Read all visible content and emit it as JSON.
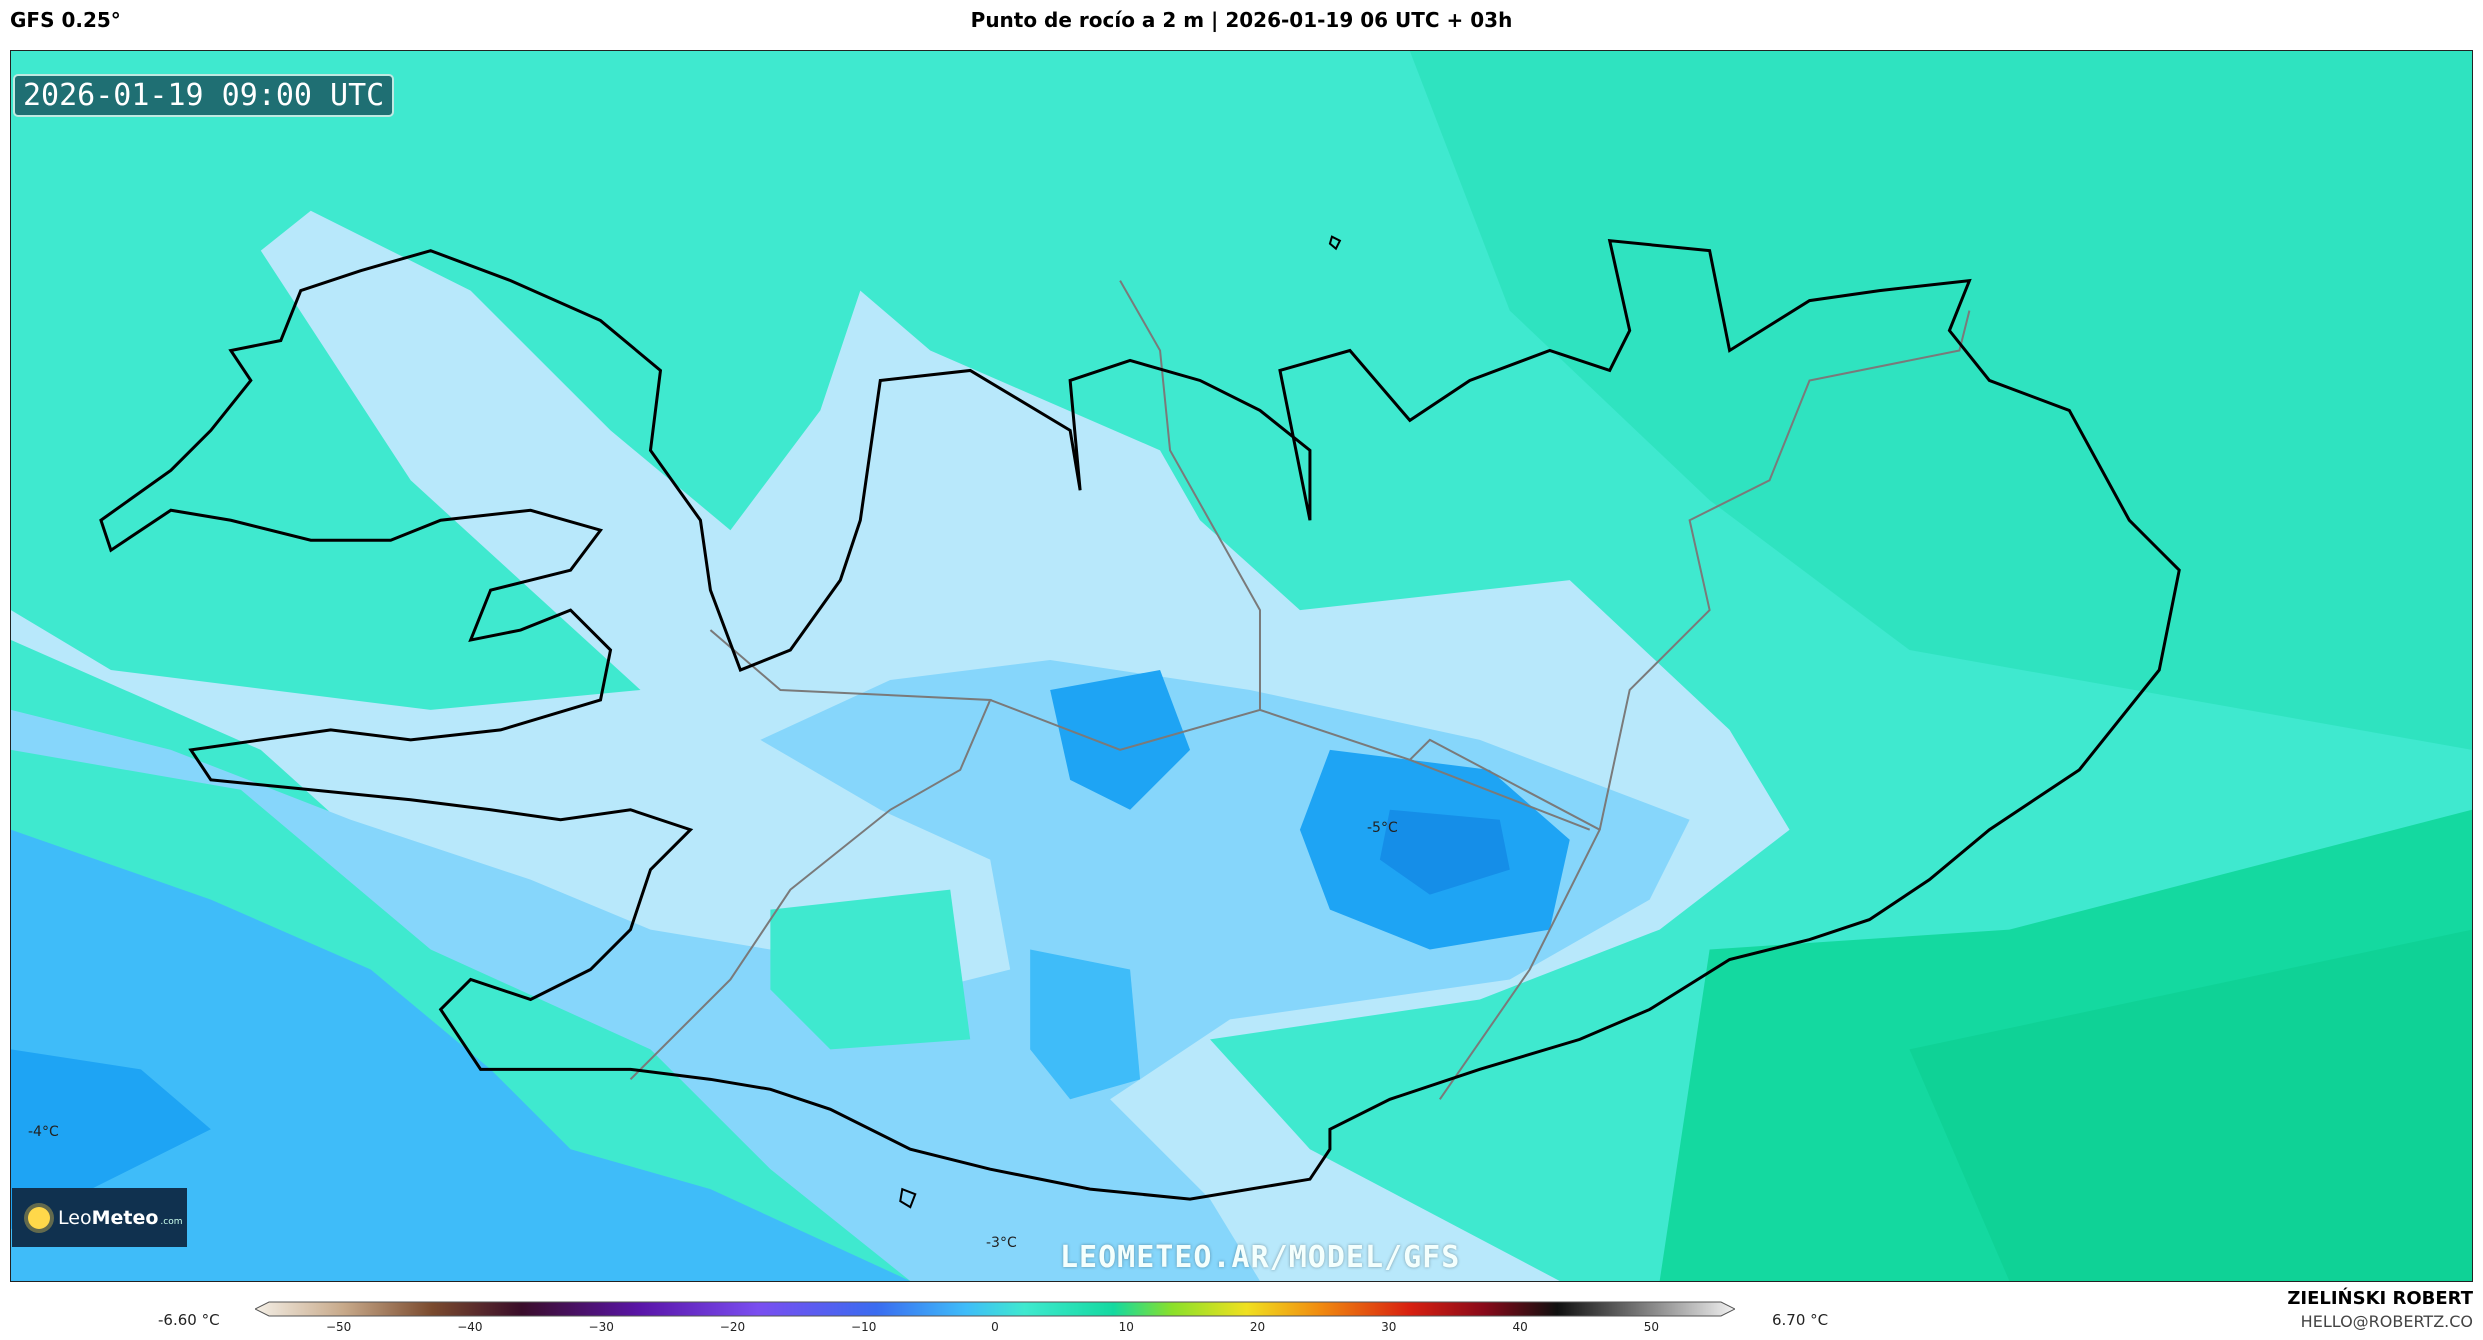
{
  "header": {
    "model": "GFS 0.25°",
    "title": "Punto de rocío a 2 m | 2026-01-19 06 UTC + 03h"
  },
  "map": {
    "valid_time": "2026-01-19 09:00 UTC",
    "contour_labels": [
      "-5°C",
      "-4°C",
      "-3°C"
    ],
    "colors": {
      "ocean_far": "#3fe9cf",
      "ocean_warm": "#14d9a0",
      "level_1": "#b8e8fb",
      "level_2": "#86d6fb",
      "level_3": "#3fbcf9",
      "level_4": "#1ea4f4",
      "coastline": "#000000",
      "region_border": "#7a7a7a"
    }
  },
  "branding": {
    "logo_name": "Leo",
    "logo_name_bold": "Meteo",
    "logo_suffix": ".com",
    "site_url": "LEOMETEO.AR/MODEL/GFS",
    "author": "ZIELIŃSKI ROBERT",
    "email": "HELLO@ROBERTZ.CO"
  },
  "colorbar": {
    "min_label": "-6.60 °C",
    "max_label": "6.70 °C",
    "ticks": [
      "−50",
      "−40",
      "−30",
      "−20",
      "−10",
      "0",
      "10",
      "20",
      "30",
      "40",
      "50"
    ],
    "range": [
      -55,
      55
    ]
  }
}
